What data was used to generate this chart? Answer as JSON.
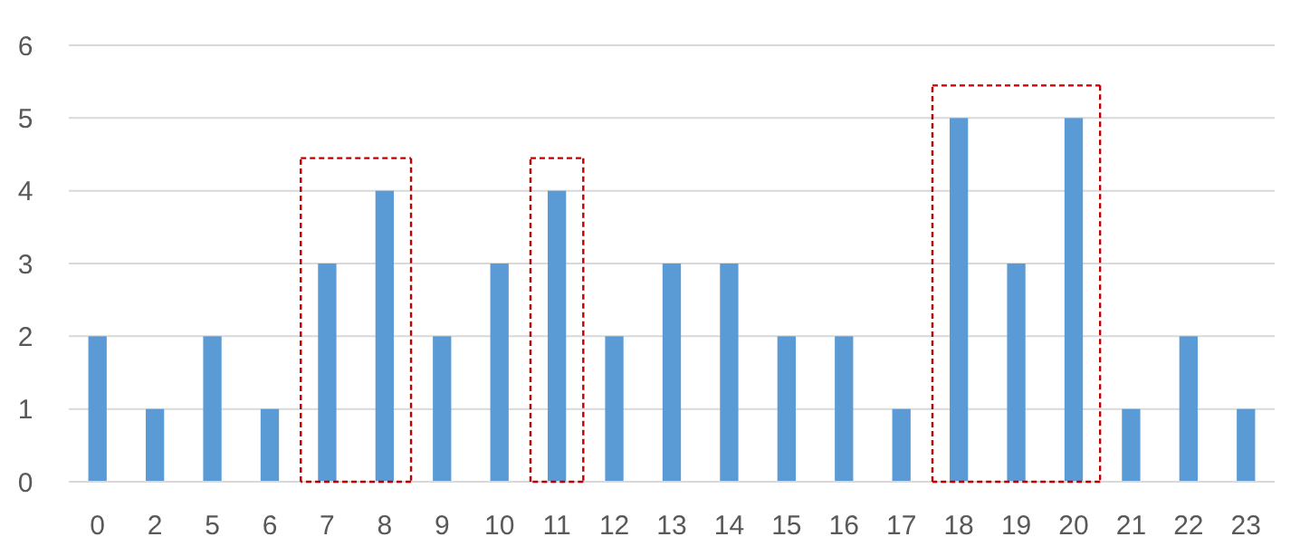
{
  "chart_data": {
    "type": "bar",
    "categories": [
      "0",
      "2",
      "5",
      "6",
      "7",
      "8",
      "9",
      "10",
      "11",
      "12",
      "13",
      "14",
      "15",
      "16",
      "17",
      "18",
      "19",
      "20",
      "21",
      "22",
      "23"
    ],
    "values": [
      2,
      1,
      2,
      1,
      3,
      4,
      2,
      3,
      4,
      2,
      3,
      3,
      2,
      2,
      1,
      5,
      3,
      5,
      1,
      2,
      1
    ],
    "color": "#5b9bd5",
    "ylim": [
      0,
      6
    ],
    "yticks": [
      0,
      1,
      2,
      3,
      4,
      5,
      6
    ],
    "grid": "y"
  }
}
